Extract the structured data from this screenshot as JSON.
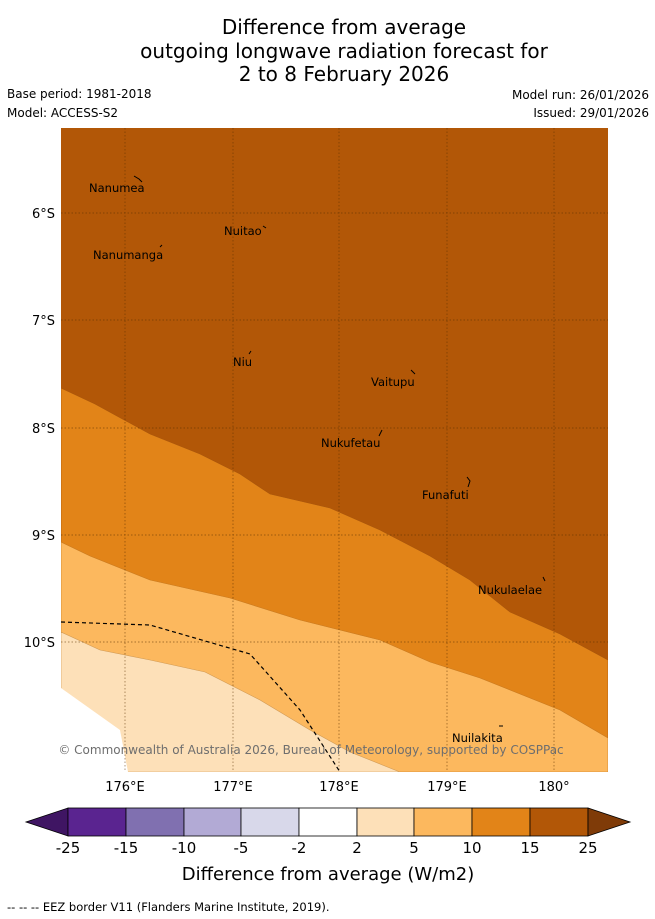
{
  "header": {
    "title_lines": [
      "Difference from average",
      "outgoing longwave radiation forecast for",
      "2 to 8 February 2026"
    ],
    "base_period": "Base period: 1981-2018",
    "model": "Model: ACCESS-S2",
    "model_run": "Model run: 26/01/2026",
    "issued": "Issued: 29/01/2026"
  },
  "map": {
    "lat_labels": [
      "6°S",
      "7°S",
      "8°S",
      "9°S",
      "10°S"
    ],
    "lon_labels": [
      "176°E",
      "177°E",
      "178°E",
      "179°E",
      "180°"
    ],
    "places": [
      "Nanumea",
      "Nuitao",
      "Nanumanga",
      "Niu",
      "Vaitupu",
      "Nukufetau",
      "Funafuti",
      "Nukulaelae",
      "Nuilakita"
    ],
    "copyright": "© Commonwealth of Australia 2026, Bureau of Meteorology, supported by COSPPac"
  },
  "legend": {
    "ticks": [
      "-25",
      "-15",
      "-10",
      "-5",
      "-2",
      "2",
      "5",
      "10",
      "15",
      "25"
    ],
    "label": "Difference from average (W/m2)",
    "colors": {
      "below_-25": "#3f1563",
      "-25_-15": "#5a2490",
      "-15_-10": "#8070b0",
      "-10_-5": "#b2aad5",
      "-5_-2": "#d8d8ea",
      "-2_2": "#ffffff",
      "2_5": "#fde0b8",
      "5_10": "#fcb85e",
      "10_15": "#e28418",
      "15_25": "#b25707",
      "above_25": "#7f3b08"
    }
  },
  "footnote": "--  --  -- EEZ border V11 (Flanders Marine Institute, 2019)."
}
